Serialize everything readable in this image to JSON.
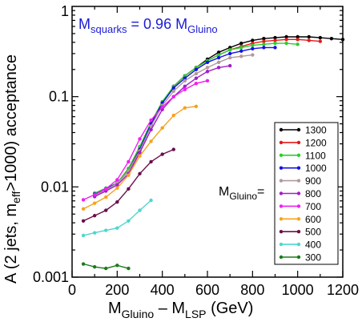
{
  "chart_data": {
    "type": "line",
    "annotation": {
      "main": "M",
      "main_sub": "squarks",
      "middle": " = 0.96 M",
      "end_sub": "Gluino",
      "color": "#1a1ad6"
    },
    "xlabel": {
      "m1": "M",
      "sub1": "Gluino",
      "middle": " – M",
      "sub2": "LSP",
      "end": "  (GeV)"
    },
    "ylabel": {
      "part1": "A (2 jets, m",
      "sub": "eff",
      "part2": ">1000) acceptance"
    },
    "legend_title": {
      "main": "M",
      "sub": "Gluino",
      "suffix": "="
    },
    "x_axis": {
      "min": 0,
      "max": 1200,
      "ticks": [
        "0",
        "200",
        "400",
        "600",
        "800",
        "1000",
        "1200"
      ],
      "minor_step": 100
    },
    "y_axis": {
      "scale": "log",
      "min": 0.001,
      "max": 1,
      "ticks": [
        "0.001",
        "0.01",
        "0.1",
        "1"
      ]
    },
    "series": [
      {
        "name": "1300",
        "color": "#000000",
        "x": [
          100,
          150,
          200,
          250,
          300,
          350,
          400,
          450,
          500,
          550,
          600,
          650,
          700,
          750,
          800,
          850,
          900,
          950,
          1000,
          1050,
          1100,
          1150,
          1200
        ],
        "y": [
          0.0085,
          0.0095,
          0.011,
          0.015,
          0.025,
          0.048,
          0.085,
          0.13,
          0.17,
          0.21,
          0.26,
          0.31,
          0.35,
          0.39,
          0.42,
          0.44,
          0.45,
          0.46,
          0.46,
          0.46,
          0.45,
          0.44,
          0.43
        ]
      },
      {
        "name": "1200",
        "color": "#e31a1c",
        "x": [
          100,
          150,
          200,
          250,
          300,
          350,
          400,
          450,
          500,
          550,
          600,
          650,
          700,
          750,
          800,
          850,
          900,
          950,
          1000,
          1050,
          1100
        ],
        "y": [
          0.0085,
          0.0095,
          0.011,
          0.016,
          0.027,
          0.05,
          0.087,
          0.13,
          0.17,
          0.21,
          0.25,
          0.29,
          0.33,
          0.36,
          0.39,
          0.41,
          0.42,
          0.43,
          0.43,
          0.42,
          0.41
        ]
      },
      {
        "name": "1100",
        "color": "#2ecc2e",
        "x": [
          100,
          150,
          200,
          250,
          300,
          350,
          400,
          450,
          500,
          550,
          600,
          650,
          700,
          750,
          800,
          850,
          900,
          950,
          1000
        ],
        "y": [
          0.0085,
          0.0097,
          0.011,
          0.016,
          0.028,
          0.052,
          0.088,
          0.13,
          0.17,
          0.21,
          0.25,
          0.29,
          0.33,
          0.35,
          0.37,
          0.38,
          0.39,
          0.39,
          0.38
        ]
      },
      {
        "name": "1000",
        "color": "#1212e6",
        "x": [
          100,
          150,
          200,
          250,
          300,
          350,
          400,
          450,
          500,
          550,
          600,
          650,
          700,
          750,
          800,
          850,
          900
        ],
        "y": [
          0.0083,
          0.0095,
          0.011,
          0.015,
          0.026,
          0.05,
          0.085,
          0.125,
          0.16,
          0.2,
          0.24,
          0.27,
          0.3,
          0.32,
          0.34,
          0.35,
          0.35
        ]
      },
      {
        "name": "900",
        "color": "#b09a9a",
        "x": [
          100,
          150,
          200,
          250,
          300,
          350,
          400,
          450,
          500,
          550,
          600,
          650,
          700,
          750,
          800
        ],
        "y": [
          0.008,
          0.0092,
          0.011,
          0.015,
          0.025,
          0.047,
          0.08,
          0.115,
          0.15,
          0.18,
          0.21,
          0.24,
          0.27,
          0.28,
          0.29
        ]
      },
      {
        "name": "800",
        "color": "#a020c8",
        "x": [
          100,
          150,
          200,
          250,
          300,
          350,
          400,
          450,
          500,
          550,
          600,
          650,
          700
        ],
        "y": [
          0.0078,
          0.009,
          0.0105,
          0.014,
          0.024,
          0.043,
          0.072,
          0.1,
          0.13,
          0.16,
          0.19,
          0.21,
          0.22
        ]
      },
      {
        "name": "700",
        "color": "#f21ef2",
        "x": [
          50,
          100,
          150,
          200,
          250,
          300,
          350,
          400,
          450,
          500,
          550,
          600
        ],
        "y": [
          0.0072,
          0.0082,
          0.0095,
          0.012,
          0.019,
          0.034,
          0.055,
          0.077,
          0.1,
          0.12,
          0.14,
          0.15
        ]
      },
      {
        "name": "600",
        "color": "#f7a21a",
        "x": [
          50,
          100,
          150,
          200,
          250,
          300,
          350,
          400,
          450,
          500,
          550
        ],
        "y": [
          0.0057,
          0.0066,
          0.0077,
          0.0097,
          0.0135,
          0.022,
          0.032,
          0.045,
          0.062,
          0.075,
          0.078
        ]
      },
      {
        "name": "500",
        "color": "#6a0f4a",
        "x": [
          50,
          100,
          150,
          200,
          250,
          300,
          350,
          400,
          450
        ],
        "y": [
          0.0042,
          0.0048,
          0.0055,
          0.0068,
          0.0095,
          0.014,
          0.019,
          0.023,
          0.026
        ]
      },
      {
        "name": "400",
        "color": "#4fd6d0",
        "x": [
          50,
          100,
          150,
          200,
          250,
          300,
          350
        ],
        "y": [
          0.0029,
          0.0031,
          0.0033,
          0.0035,
          0.0042,
          0.0055,
          0.0071
        ]
      },
      {
        "name": "300",
        "color": "#1a7a1a",
        "x": [
          50,
          100,
          150,
          200,
          250
        ],
        "y": [
          0.0014,
          0.0013,
          0.00125,
          0.00135,
          0.00125
        ]
      }
    ]
  }
}
